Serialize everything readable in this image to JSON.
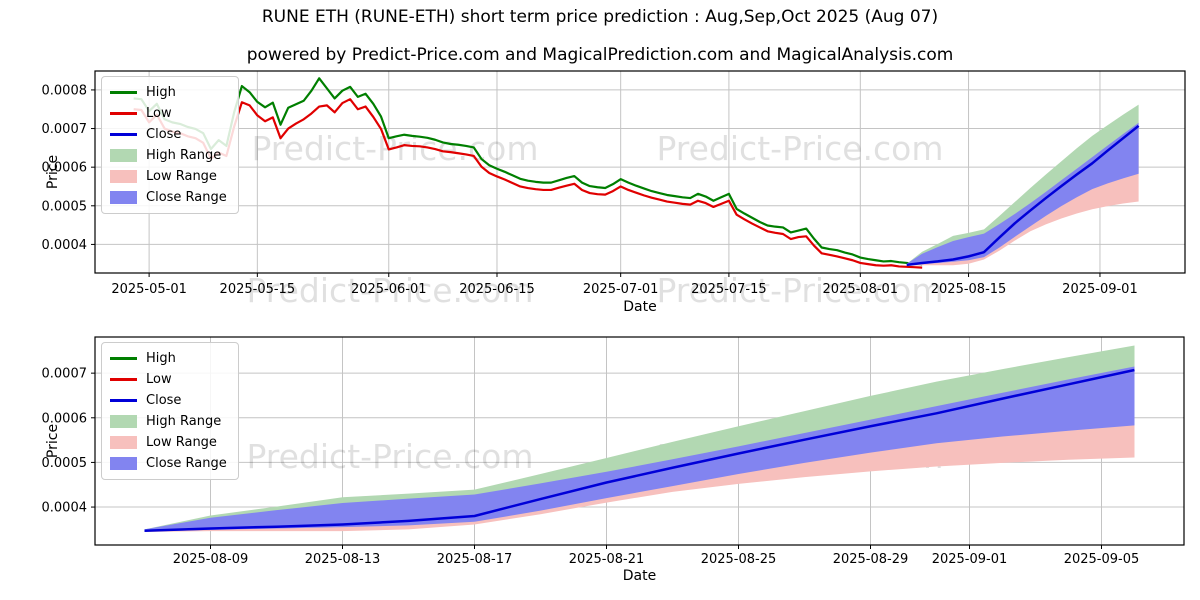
{
  "title": "RUNE ETH (RUNE-ETH) short term price prediction : Aug,Sep,Oct 2025 (Aug 07)",
  "subtitle": "powered by Predict-Price.com and MagicalPrediction.com and MagicalAnalysis.com",
  "watermark": "Predict-Price.com",
  "colors": {
    "high_line": "#007f00",
    "low_line": "#e00000",
    "close_line": "#0000d8",
    "high_range_fill": "#b2d8b2",
    "low_range_fill": "#f7c0bd",
    "close_range_fill": "#8284f0",
    "grid": "#c4c4c4",
    "spine": "#000000",
    "watermark_color": "rgba(0,0,0,0.12)",
    "background": "#ffffff"
  },
  "legend": {
    "items": [
      {
        "label": "High",
        "swatch": "line",
        "color_key": "high_line"
      },
      {
        "label": "Low",
        "swatch": "line",
        "color_key": "low_line"
      },
      {
        "label": "Close",
        "swatch": "line",
        "color_key": "close_line"
      },
      {
        "label": "High Range",
        "swatch": "patch",
        "color_key": "high_range_fill"
      },
      {
        "label": "Low Range",
        "swatch": "patch",
        "color_key": "low_range_fill"
      },
      {
        "label": "Close Range",
        "swatch": "patch",
        "color_key": "close_range_fill"
      }
    ]
  },
  "chart_data": [
    {
      "type": "line",
      "title": "",
      "xlabel": "Date",
      "ylabel": "Price",
      "grid": true,
      "legend_position": "upper left",
      "xlim": [
        "2025-04-24",
        "2025-09-12"
      ],
      "ylim": [
        0.000326,
        0.000849
      ],
      "x_ticks": [
        "2025-05-01",
        "2025-05-15",
        "2025-06-01",
        "2025-06-15",
        "2025-07-01",
        "2025-07-15",
        "2025-08-01",
        "2025-08-15",
        "2025-09-01"
      ],
      "y_ticks": [
        0.0004,
        0.0005,
        0.0006,
        0.0007,
        0.0008
      ],
      "y_tick_labels": [
        "0.0004",
        "0.0005",
        "0.0006",
        "0.0007",
        "0.0008"
      ],
      "value_scale": 1e-06,
      "series": {
        "historical": {
          "start_date": "2025-04-29",
          "interval_days": 1,
          "high": [
            778,
            776,
            745,
            764,
            724,
            716,
            712,
            704,
            699,
            688,
            647,
            670,
            655,
            742,
            810,
            794,
            769,
            755,
            767,
            710,
            754,
            763,
            772,
            798,
            830,
            804,
            778,
            798,
            808,
            782,
            790,
            764,
            731,
            675,
            680,
            684,
            681,
            679,
            676,
            671,
            664,
            660,
            658,
            655,
            651,
            621,
            605,
            596,
            588,
            579,
            570,
            565,
            562,
            560,
            560,
            566,
            572,
            577,
            560,
            551,
            548,
            546,
            556,
            569,
            560,
            552,
            545,
            538,
            533,
            528,
            525,
            522,
            520,
            531,
            524,
            513,
            522,
            531,
            492,
            480,
            469,
            458,
            449,
            446,
            444,
            431,
            436,
            441,
            415,
            392,
            388,
            385,
            379,
            374,
            366,
            362,
            359,
            356,
            357,
            354,
            352,
            350,
            348
          ],
          "low": [
            750,
            748,
            716,
            736,
            700,
            692,
            688,
            680,
            675,
            663,
            622,
            638,
            629,
            705,
            768,
            760,
            734,
            719,
            729,
            675,
            700,
            713,
            724,
            739,
            757,
            760,
            742,
            766,
            776,
            750,
            757,
            730,
            699,
            646,
            651,
            657,
            655,
            654,
            651,
            647,
            641,
            639,
            636,
            633,
            629,
            601,
            585,
            576,
            568,
            559,
            550,
            546,
            543,
            541,
            541,
            547,
            552,
            557,
            541,
            533,
            530,
            529,
            538,
            550,
            541,
            534,
            527,
            521,
            516,
            511,
            508,
            505,
            503,
            513,
            507,
            497,
            505,
            513,
            477,
            465,
            454,
            444,
            434,
            430,
            427,
            414,
            419,
            421,
            397,
            377,
            373,
            369,
            364,
            359,
            352,
            349,
            346,
            345,
            346,
            343,
            342,
            341,
            340
          ]
        },
        "prediction": {
          "dates": [
            "2025-08-07",
            "2025-08-09",
            "2025-08-11",
            "2025-08-13",
            "2025-08-15",
            "2025-08-17",
            "2025-08-19",
            "2025-08-21",
            "2025-08-23",
            "2025-08-25",
            "2025-08-27",
            "2025-08-29",
            "2025-08-31",
            "2025-09-02",
            "2025-09-04",
            "2025-09-06"
          ],
          "close": [
            347,
            352,
            356,
            361,
            369,
            380,
            418,
            455,
            488,
            520,
            551,
            581,
            610,
            643,
            675,
            707
          ],
          "close_max": [
            350,
            376,
            393,
            409,
            419,
            428,
            453,
            479,
            507,
            536,
            566,
            596,
            626,
            656,
            686,
            715
          ],
          "close_min": [
            345,
            349,
            352,
            355,
            359,
            367,
            392,
            420,
            447,
            474,
            499,
            522,
            543,
            558,
            571,
            583
          ],
          "high_max": [
            350,
            381,
            401,
            422,
            430,
            439,
            474,
            510,
            546,
            581,
            615,
            649,
            681,
            709,
            736,
            762
          ],
          "low_min": [
            344,
            346,
            346,
            346,
            350,
            361,
            384,
            410,
            434,
            452,
            467,
            480,
            491,
            499,
            506,
            511
          ]
        }
      }
    },
    {
      "type": "line",
      "title": "",
      "xlabel": "Date",
      "ylabel": "Price",
      "grid": true,
      "legend_position": "upper left",
      "xlim": [
        "2025-08-05T12:00:00Z",
        "2025-09-07T12:00:00Z"
      ],
      "ylim": [
        0.000315,
        0.000781
      ],
      "x_ticks": [
        "2025-08-09",
        "2025-08-13",
        "2025-08-17",
        "2025-08-21",
        "2025-08-25",
        "2025-08-29",
        "2025-09-01",
        "2025-09-05"
      ],
      "y_ticks": [
        0.0004,
        0.0005,
        0.0006,
        0.0007
      ],
      "y_tick_labels": [
        "0.0004",
        "0.0005",
        "0.0006",
        "0.0007"
      ],
      "value_scale": 1e-06,
      "series": {
        "prediction": {
          "dates": [
            "2025-08-07",
            "2025-08-09",
            "2025-08-11",
            "2025-08-13",
            "2025-08-15",
            "2025-08-17",
            "2025-08-19",
            "2025-08-21",
            "2025-08-23",
            "2025-08-25",
            "2025-08-27",
            "2025-08-29",
            "2025-08-31",
            "2025-09-02",
            "2025-09-04",
            "2025-09-06"
          ],
          "close": [
            347,
            352,
            356,
            361,
            369,
            380,
            418,
            455,
            488,
            520,
            551,
            581,
            610,
            643,
            675,
            707
          ],
          "close_max": [
            350,
            376,
            393,
            409,
            419,
            428,
            453,
            479,
            507,
            536,
            566,
            596,
            626,
            656,
            686,
            715
          ],
          "close_min": [
            345,
            349,
            352,
            355,
            359,
            367,
            392,
            420,
            447,
            474,
            499,
            522,
            543,
            558,
            571,
            583
          ],
          "high_max": [
            350,
            381,
            401,
            422,
            430,
            439,
            474,
            510,
            546,
            581,
            615,
            649,
            681,
            709,
            736,
            762
          ],
          "low_min": [
            344,
            346,
            346,
            346,
            350,
            361,
            384,
            410,
            434,
            452,
            467,
            480,
            491,
            499,
            506,
            511
          ]
        }
      }
    }
  ]
}
